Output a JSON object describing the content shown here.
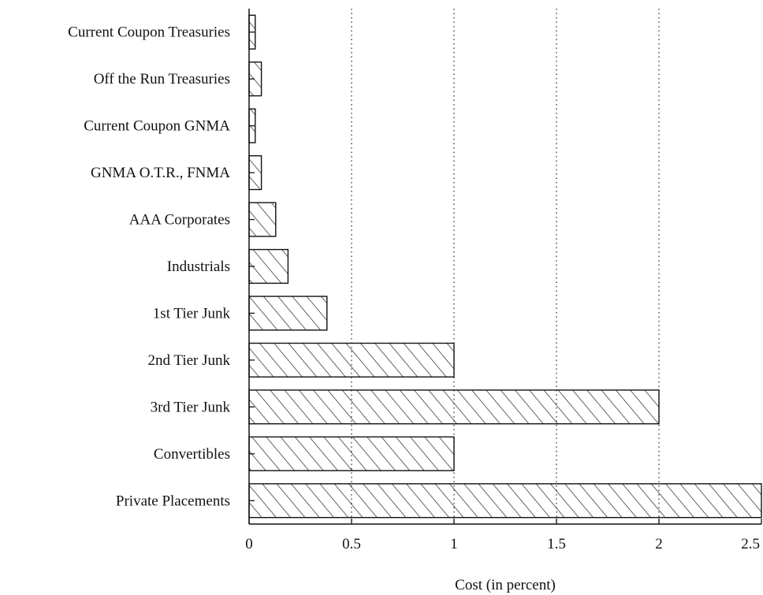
{
  "chart_data": {
    "type": "bar",
    "orientation": "horizontal",
    "categories": [
      "Current Coupon Treasuries",
      "Off the Run Treasuries",
      "Current Coupon GNMA",
      "GNMA O.T.R., FNMA",
      "AAA Corporates",
      "Industrials",
      "1st Tier Junk",
      "2nd Tier Junk",
      "3rd Tier Junk",
      "Convertibles",
      "Private Placements"
    ],
    "values": [
      0.03,
      0.06,
      0.03,
      0.06,
      0.13,
      0.19,
      0.38,
      1.0,
      2.0,
      1.0,
      2.5
    ],
    "title": "",
    "xlabel": "Cost (in percent)",
    "ylabel": "",
    "xlim": [
      0,
      2.5
    ],
    "xticks": [
      0,
      0.5,
      1,
      1.5,
      2,
      2.5
    ],
    "xtick_labels": [
      "0",
      "0.5",
      "1",
      "1.5",
      "2",
      "2.5"
    ],
    "grid": "vertical dotted",
    "legend": "none",
    "bar_fill": "diagonal hatch",
    "colors": {
      "ink": "#111111",
      "background": "#ffffff"
    }
  }
}
